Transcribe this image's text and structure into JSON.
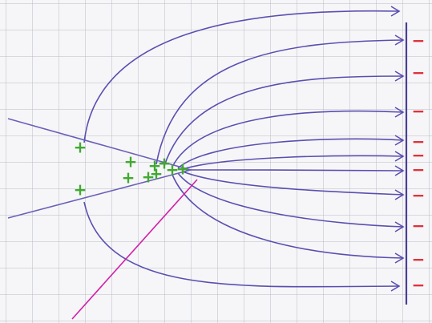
{
  "positive_charges": [
    "+",
    "+",
    "+",
    "+",
    "+",
    "+",
    "+",
    "+",
    "+",
    "+"
  ],
  "negative_charges": [
    "−",
    "−",
    "−",
    "−",
    "−",
    "−",
    "−",
    "−",
    "−",
    "−"
  ]
}
